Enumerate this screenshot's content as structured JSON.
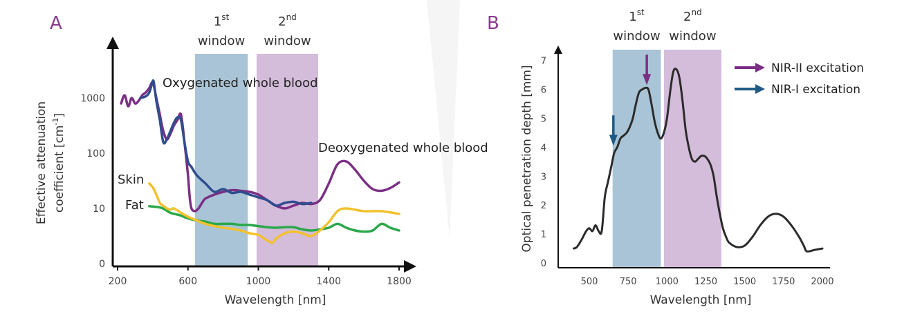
{
  "chart_data": [
    {
      "panel": "A",
      "type": "line",
      "xlabel": "Wavelength [nm]",
      "ylabel_line1": "Effective attenuation",
      "ylabel_line2": "coefficient [cm",
      "ylabel_sup": "-1",
      "ylabel_close": "]",
      "xticks": [
        "200",
        "600",
        "1000",
        "1400",
        "1800"
      ],
      "yticks": [
        "0",
        "10",
        "100",
        "1000"
      ],
      "windows": [
        {
          "num": "1",
          "sup": "st",
          "word": "window",
          "range": [
            640,
            940
          ],
          "color": "#a9c4d6"
        },
        {
          "num": "2",
          "sup": "nd",
          "word": "window",
          "range": [
            990,
            1340
          ],
          "color": "#d4bcdb"
        }
      ],
      "annotations": {
        "oxy": "Oxygenated whole blood",
        "deoxy": "Deoxygenated whole blood",
        "skin": "Skin",
        "fat": "Fat"
      },
      "series": [
        {
          "name": "Oxygenated whole blood",
          "color": "#2f4d8e",
          "x": [
            330,
            360,
            380,
            395,
            405,
            420,
            440,
            460,
            480,
            500,
            520,
            540,
            560,
            580,
            600,
            620,
            650,
            700,
            750,
            800,
            850,
            900,
            950,
            1000,
            1050,
            1100,
            1150,
            1200,
            1250,
            1300
          ],
          "y": [
            3.0,
            3.03,
            3.1,
            3.25,
            3.3,
            2.95,
            2.6,
            2.2,
            2.25,
            2.4,
            2.55,
            2.65,
            2.6,
            2.2,
            1.85,
            1.75,
            1.6,
            1.45,
            1.3,
            1.35,
            1.28,
            1.3,
            1.25,
            1.2,
            1.15,
            1.05,
            1.1,
            1.12,
            1.08,
            1.1
          ]
        },
        {
          "name": "Deoxygenated whole blood",
          "color": "#7a2f84",
          "x": [
            220,
            240,
            260,
            280,
            300,
            320,
            340,
            360,
            380,
            400,
            420,
            440,
            460,
            480,
            500,
            520,
            540,
            560,
            580,
            600,
            610,
            620,
            640,
            660,
            680,
            700,
            750,
            800,
            850,
            900,
            950,
            1000,
            1050,
            1100,
            1150,
            1200,
            1250,
            1300,
            1350,
            1400,
            1450,
            1500,
            1550,
            1600,
            1650,
            1700,
            1750,
            1800
          ],
          "y": [
            2.9,
            3.05,
            2.85,
            3.0,
            2.9,
            2.95,
            3.05,
            3.1,
            3.18,
            3.28,
            3.0,
            2.7,
            2.4,
            2.25,
            2.35,
            2.5,
            2.6,
            2.7,
            2.2,
            1.6,
            1.2,
            1.0,
            0.95,
            1.0,
            1.1,
            1.18,
            1.25,
            1.3,
            1.33,
            1.32,
            1.3,
            1.25,
            1.15,
            1.05,
            1.0,
            1.05,
            1.1,
            1.08,
            1.15,
            1.45,
            1.8,
            1.85,
            1.7,
            1.5,
            1.35,
            1.32,
            1.37,
            1.47
          ]
        },
        {
          "name": "Skin",
          "color": "#f2c12e",
          "x": [
            380,
            400,
            420,
            440,
            460,
            480,
            500,
            520,
            560,
            600,
            650,
            700,
            750,
            800,
            850,
            900,
            950,
            1000,
            1050,
            1080,
            1100,
            1150,
            1200,
            1250,
            1300,
            1350,
            1400,
            1450,
            1500,
            1600,
            1700,
            1800
          ],
          "y": [
            1.45,
            1.38,
            1.25,
            1.1,
            1.05,
            1.0,
            0.98,
            1.0,
            0.92,
            0.85,
            0.78,
            0.72,
            0.68,
            0.65,
            0.63,
            0.6,
            0.55,
            0.52,
            0.42,
            0.38,
            0.45,
            0.55,
            0.58,
            0.55,
            0.5,
            0.6,
            0.75,
            0.95,
            1.0,
            0.95,
            0.95,
            0.9
          ]
        },
        {
          "name": "Fat",
          "color": "#2aa84a",
          "x": [
            380,
            450,
            500,
            550,
            600,
            650,
            700,
            750,
            800,
            850,
            900,
            950,
            1000,
            1050,
            1100,
            1150,
            1200,
            1250,
            1300,
            1350,
            1400,
            1450,
            1500,
            1550,
            1600,
            1650,
            1700,
            1750,
            1800
          ],
          "y": [
            1.04,
            1.01,
            0.92,
            0.88,
            0.82,
            0.78,
            0.76,
            0.72,
            0.72,
            0.72,
            0.7,
            0.7,
            0.68,
            0.66,
            0.65,
            0.66,
            0.66,
            0.62,
            0.6,
            0.62,
            0.65,
            0.72,
            0.65,
            0.6,
            0.58,
            0.6,
            0.72,
            0.65,
            0.6
          ]
        }
      ]
    },
    {
      "panel": "B",
      "type": "line",
      "xlabel": "Wavelength [nm]",
      "ylabel": "Optical penetration depth [mm]",
      "xticks": [
        "500",
        "750",
        "1000",
        "1250",
        "1500",
        "1750",
        "2000"
      ],
      "yticks": [
        "0",
        "1",
        "2",
        "3",
        "4",
        "5",
        "6",
        "7"
      ],
      "windows": [
        {
          "num": "1",
          "sup": "st",
          "word": "window",
          "range": [
            650,
            960
          ],
          "color": "#a9c4d6"
        },
        {
          "num": "2",
          "sup": "nd",
          "word": "window",
          "range": [
            980,
            1350
          ],
          "color": "#d4bcdb"
        }
      ],
      "legend": [
        {
          "label": "NIR-II excitation",
          "color": "#7a2f84"
        },
        {
          "label": "NIR-I excitation",
          "color": "#1f5a84"
        }
      ],
      "arrows": [
        {
          "x": 870,
          "y": 6.2,
          "color": "#7a2f84"
        },
        {
          "x": 655,
          "y": 4.1,
          "color": "#1f5a84"
        }
      ],
      "series": [
        {
          "name": "Optical penetration depth",
          "color": "#2b2b2b",
          "x": [
            400,
            420,
            450,
            480,
            500,
            520,
            540,
            560,
            580,
            600,
            620,
            640,
            660,
            680,
            700,
            720,
            740,
            760,
            780,
            800,
            820,
            840,
            860,
            880,
            900,
            920,
            940,
            960,
            980,
            1000,
            1020,
            1040,
            1060,
            1080,
            1100,
            1120,
            1140,
            1160,
            1180,
            1200,
            1220,
            1240,
            1260,
            1280,
            1300,
            1320,
            1340,
            1360,
            1380,
            1400,
            1450,
            1500,
            1550,
            1600,
            1650,
            1700,
            1750,
            1800,
            1850,
            1880,
            1900,
            1950,
            2000
          ],
          "y": [
            0.5,
            0.55,
            0.8,
            1.1,
            1.2,
            1.1,
            1.3,
            1.1,
            1.1,
            2.3,
            2.8,
            3.3,
            3.8,
            4.0,
            4.3,
            4.4,
            4.5,
            4.7,
            5.0,
            5.5,
            5.9,
            6.0,
            6.05,
            6.0,
            5.5,
            4.9,
            4.5,
            4.3,
            4.5,
            5.0,
            5.9,
            6.6,
            6.7,
            6.4,
            5.6,
            4.6,
            4.0,
            3.6,
            3.5,
            3.6,
            3.7,
            3.7,
            3.6,
            3.4,
            3.0,
            2.3,
            1.7,
            1.2,
            0.9,
            0.7,
            0.55,
            0.6,
            0.9,
            1.3,
            1.6,
            1.7,
            1.6,
            1.3,
            0.9,
            0.6,
            0.4,
            0.45,
            0.5
          ]
        }
      ]
    }
  ]
}
